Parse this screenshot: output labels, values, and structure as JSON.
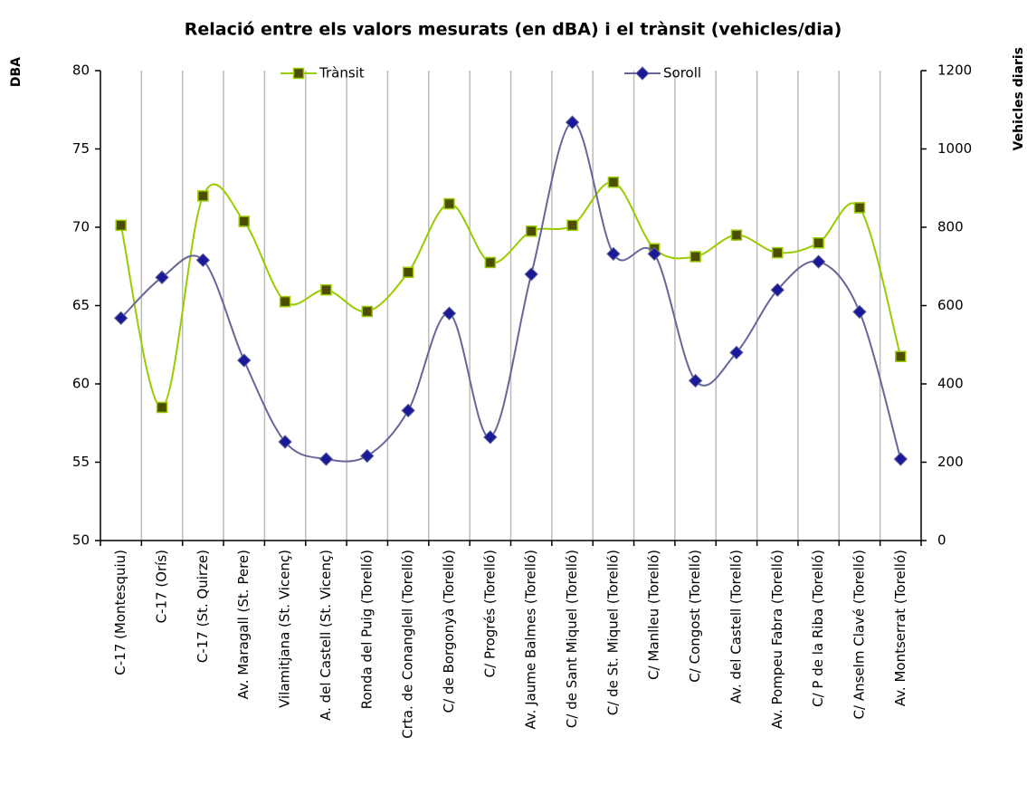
{
  "chart_data": {
    "type": "line",
    "title": "Relació entre els valors mesurats (en dBA) i el trànsit (vehicles/dia)",
    "y_label": "DBA",
    "y2_label": "Vehicles diaris",
    "categories": [
      "C-17 (Montesquiu)",
      "C-17 (Orís)",
      "C-17 (St. Quirze)",
      "Av. Maragall (St. Pere)",
      "Vilamitjana (St. Vicenç)",
      "A. del Castell (St. Vicenç)",
      "Ronda del Puig (Torelló)",
      "Crta. de Conanglell (Torelló)",
      "C/ de Borgonyà (Torelló)",
      "C/ Progrés (Torelló)",
      "Av. Jaume Balmes (Torelló)",
      "C/ de Sant Miquel (Torelló)",
      "C/ de St. Miquel (Torelló)",
      "C/ Manlleu (Torelló)",
      "C/ Congost (Torelló)",
      "Av. del Castell (Torelló)",
      "Av. Pompeu Fabra (Torelló)",
      "C/ P de la Riba (Torelló)",
      "C/ Anselm Clavé (Torelló)",
      "Av. Montserrat (Torelló)"
    ],
    "series": [
      {
        "name": "Trànsit",
        "color": "#99cc00",
        "marker_fill": "#4d4d00",
        "marker": "square",
        "axis": "y2",
        "values": [
          805,
          340,
          880,
          815,
          610,
          640,
          585,
          685,
          860,
          710,
          790,
          805,
          915,
          745,
          725,
          780,
          735,
          760,
          850,
          470
        ]
      },
      {
        "name": "Soroll",
        "color": "#666699",
        "marker_fill": "#1a1a99",
        "marker": "diamond",
        "axis": "y",
        "values": [
          64.2,
          66.8,
          67.9,
          61.5,
          56.3,
          55.2,
          55.4,
          58.3,
          64.5,
          56.6,
          67.0,
          76.7,
          68.3,
          68.3,
          60.2,
          62.0,
          66.0,
          67.8,
          64.6,
          55.2
        ]
      }
    ],
    "ylim": [
      50,
      80
    ],
    "yticks": [
      50,
      55,
      60,
      65,
      70,
      75,
      80
    ],
    "y2lim": [
      0,
      1200
    ],
    "y2ticks": [
      0,
      200,
      400,
      600,
      800,
      1000,
      1200
    ],
    "grid": "vertical",
    "legend": "top",
    "smooth": true
  }
}
